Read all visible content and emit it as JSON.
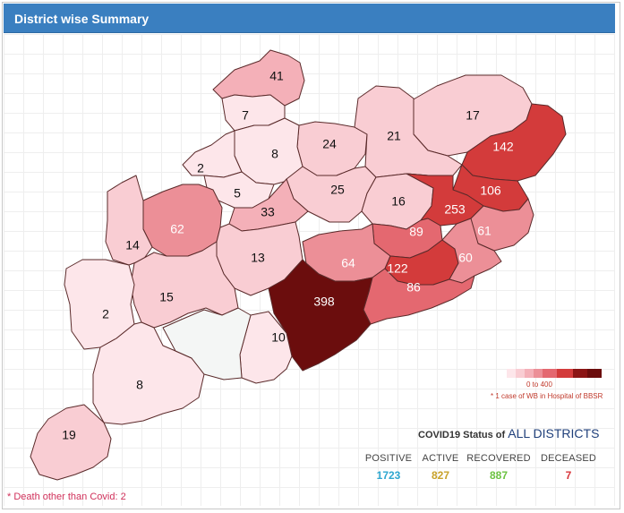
{
  "header": {
    "title": "District wise Summary"
  },
  "colors": {
    "scale": [
      "#fde6ea",
      "#f9cdd3",
      "#f4b0b8",
      "#ec8f97",
      "#e46870",
      "#d33b3b",
      "#8b1515",
      "#6b0d0d"
    ],
    "no_data": "#f4f6f5",
    "positive": "#2ea7d0",
    "active": "#c8a22a",
    "recovered": "#6cc242",
    "deceased": "#d8353a"
  },
  "districts": [
    {
      "value": "41"
    },
    {
      "value": "7"
    },
    {
      "value": "17"
    },
    {
      "value": "142"
    },
    {
      "value": "24"
    },
    {
      "value": "21"
    },
    {
      "value": "8"
    },
    {
      "value": "2"
    },
    {
      "value": "5"
    },
    {
      "value": "25"
    },
    {
      "value": "16"
    },
    {
      "value": "106"
    },
    {
      "value": "253"
    },
    {
      "value": "62"
    },
    {
      "value": "33"
    },
    {
      "value": "89"
    },
    {
      "value": "61"
    },
    {
      "value": "14"
    },
    {
      "value": "13"
    },
    {
      "value": "64"
    },
    {
      "value": "122"
    },
    {
      "value": "60"
    },
    {
      "value": "86"
    },
    {
      "value": "15"
    },
    {
      "value": "398"
    },
    {
      "value": "2"
    },
    {
      "value": "10"
    },
    {
      "value": "8"
    },
    {
      "value": "19"
    },
    {
      "value": ""
    }
  ],
  "legend": {
    "range": "0 to 400",
    "note": "* 1 case of WB in Hospital of BBSR"
  },
  "status": {
    "title_prefix": "COVID19 Status of",
    "title_highlight": "ALL DISTRICTS",
    "items": [
      {
        "label": "POSITIVE",
        "value": "1723"
      },
      {
        "label": "ACTIVE",
        "value": "827"
      },
      {
        "label": "RECOVERED",
        "value": "887"
      },
      {
        "label": "DECEASED",
        "value": "7"
      }
    ]
  },
  "footnote": "* Death other than Covid: 2"
}
